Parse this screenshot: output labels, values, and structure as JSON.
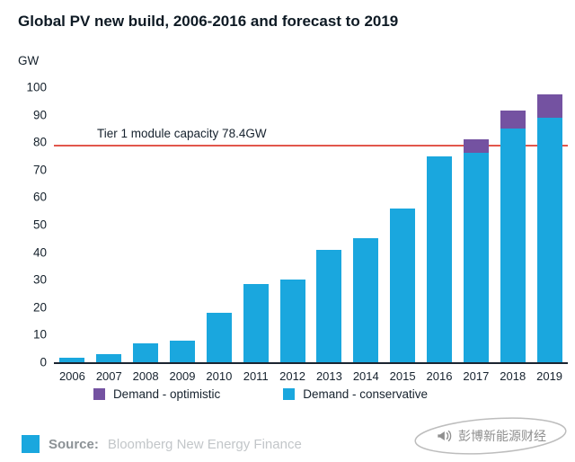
{
  "title": "Global PV new build, 2006-2016 and forecast to 2019",
  "chart_data": {
    "type": "bar",
    "stacked": true,
    "title": "Global PV new build, 2006-2016 and forecast to 2019",
    "ylabel": "GW",
    "ylim": [
      0,
      100
    ],
    "yticks": [
      0,
      10,
      20,
      30,
      40,
      50,
      60,
      70,
      80,
      90,
      100
    ],
    "grid": false,
    "categories": [
      "2006",
      "2007",
      "2008",
      "2009",
      "2010",
      "2011",
      "2012",
      "2013",
      "2014",
      "2015",
      "2016",
      "2017",
      "2018",
      "2019"
    ],
    "series": [
      {
        "name": "Demand - conservative",
        "color": "#1aa7de",
        "values": [
          1.5,
          3,
          7,
          8,
          18,
          28.5,
          30,
          41,
          45,
          56,
          75,
          76,
          85,
          89
        ]
      },
      {
        "name": "Demand - optimistic",
        "color": "#7452a1",
        "values": [
          0,
          0,
          0,
          0,
          0,
          0,
          0,
          0,
          0,
          0,
          0,
          5,
          6.5,
          8.5
        ]
      }
    ],
    "annotation_line": {
      "value": 78.4,
      "label": "Tier 1 module capacity 78.4GW",
      "color": "#e2574c"
    },
    "legend": [
      {
        "label": "Demand - optimistic",
        "color": "#7452a1"
      },
      {
        "label": "Demand - conservative",
        "color": "#1aa7de"
      }
    ],
    "legend_position": "bottom"
  },
  "footer": {
    "logo_color": "#1aa7de",
    "source_label": "Source:",
    "source_text": "Bloomberg New Energy Finance"
  },
  "watermark": {
    "text": "彭博新能源财经"
  },
  "colors": {
    "conservative_blue": "#1aa7de",
    "optimistic_purple": "#7452a1",
    "capacity_line_red": "#e2574c",
    "axis_dark": "#1b2430"
  }
}
